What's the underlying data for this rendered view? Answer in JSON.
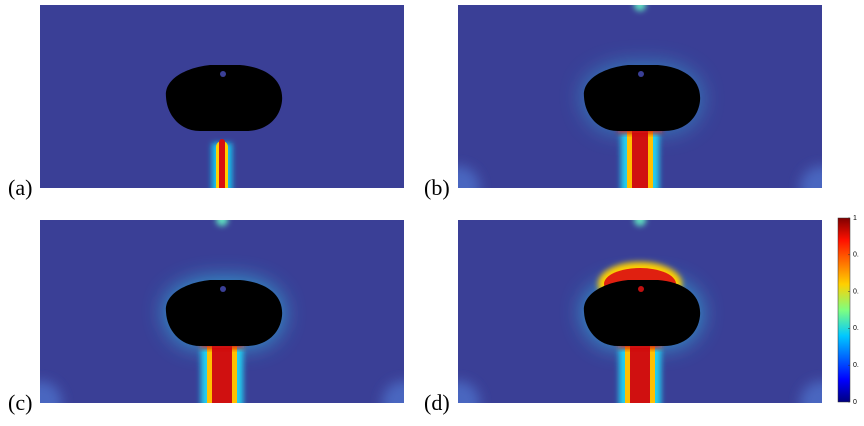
{
  "panels": [
    {
      "label": "(a)"
    },
    {
      "label": "(b)"
    },
    {
      "label": "(c)"
    },
    {
      "label": "(d)"
    }
  ],
  "colorbar": {
    "ticks": [
      {
        "value": 1,
        "label": "1"
      },
      {
        "value": 0.8,
        "label": "0."
      },
      {
        "value": 0.6,
        "label": "0."
      },
      {
        "value": 0.4,
        "label": "0."
      },
      {
        "value": 0.2,
        "label": "0."
      },
      {
        "value": 0,
        "label": "0"
      }
    ]
  }
}
